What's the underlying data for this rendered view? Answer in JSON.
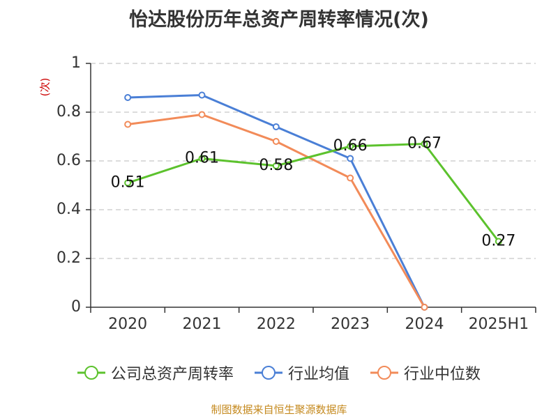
{
  "title": "怡达股份历年总资产周转率情况(次)",
  "footer": "制图数据来自恒生聚源数据库",
  "chart_data": {
    "type": "line",
    "title": "怡达股份历年总资产周转率情况(次)",
    "ylabel": "(次)",
    "xlabel": "",
    "categories": [
      "2020",
      "2021",
      "2022",
      "2023",
      "2024",
      "2025H1"
    ],
    "ylim": [
      0,
      1
    ],
    "yticks": [
      0,
      0.2,
      0.4,
      0.6,
      0.8,
      1
    ],
    "ytick_labels": [
      "0",
      "0.2",
      "0.4",
      "0.6",
      "0.8",
      "1"
    ],
    "grid": true,
    "legend_position": "bottom",
    "series": [
      {
        "name": "公司总资产周转率",
        "color": "#5cc22d",
        "show_labels": true,
        "values": [
          0.51,
          0.61,
          0.58,
          0.66,
          0.67,
          0.27
        ],
        "labels": [
          "0.51",
          "0.61",
          "0.58",
          "0.66",
          "0.67",
          "0.27"
        ]
      },
      {
        "name": "行业均值",
        "color": "#4a7fd6",
        "show_labels": false,
        "values": [
          0.86,
          0.87,
          0.74,
          0.61,
          0,
          null
        ]
      },
      {
        "name": "行业中位数",
        "color": "#f28b59",
        "show_labels": false,
        "values": [
          0.75,
          0.79,
          0.68,
          0.53,
          0,
          null
        ]
      }
    ]
  }
}
